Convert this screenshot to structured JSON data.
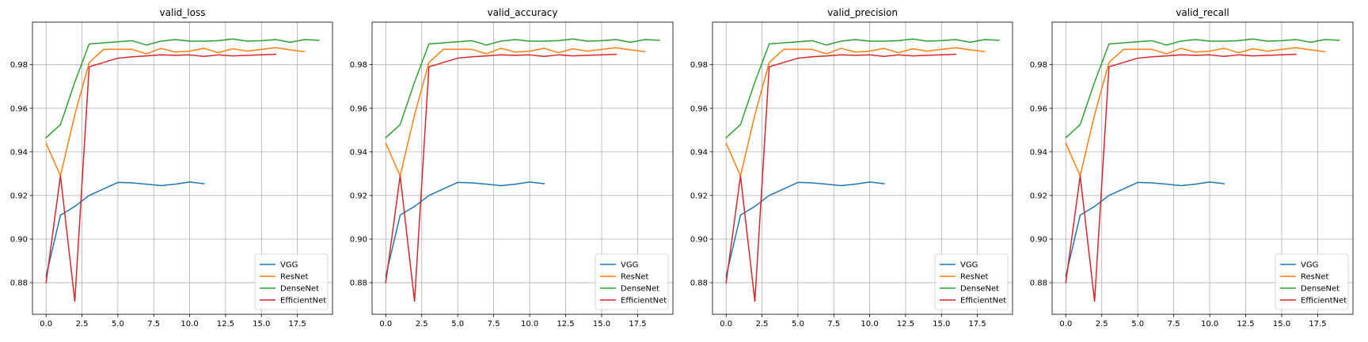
{
  "figure": {
    "background": "#ffffff",
    "grid_color": "#b0b0b0",
    "axis_color": "#000000"
  },
  "chart_data": [
    {
      "type": "line",
      "title": "valid_loss",
      "xlabel": "",
      "ylabel": "",
      "xlim": [
        -0.95,
        19.95
      ],
      "ylim": [
        0.8655,
        0.9995
      ],
      "xticks": [
        0.0,
        2.5,
        5.0,
        7.5,
        10.0,
        12.5,
        15.0,
        17.5
      ],
      "xtick_labels": [
        "0.0",
        "2.5",
        "5.0",
        "7.5",
        "10.0",
        "12.5",
        "15.0",
        "17.5"
      ],
      "yticks": [
        0.88,
        0.9,
        0.92,
        0.94,
        0.96,
        0.98
      ],
      "ytick_labels": [
        "0.88",
        "0.90",
        "0.92",
        "0.94",
        "0.96",
        "0.98"
      ],
      "grid": true,
      "legend_position": "lower-right",
      "series": [
        {
          "name": "VGG",
          "color": "#1f77b4",
          "x": [
            0,
            1,
            2,
            3,
            4,
            5,
            6,
            7,
            8,
            9,
            10,
            11
          ],
          "y": [
            0.883,
            0.911,
            0.915,
            0.92,
            0.923,
            0.926,
            0.9258,
            0.9252,
            0.9245,
            0.9252,
            0.9262,
            0.9254
          ]
        },
        {
          "name": "ResNet",
          "color": "#ff7f0e",
          "x": [
            0,
            1,
            2,
            3,
            4,
            5,
            6,
            7,
            8,
            9,
            10,
            11,
            12,
            13,
            14,
            15,
            16,
            17,
            18
          ],
          "y": [
            0.944,
            0.929,
            0.957,
            0.981,
            0.987,
            0.987,
            0.987,
            0.985,
            0.9875,
            0.9858,
            0.9862,
            0.9875,
            0.9855,
            0.9873,
            0.9862,
            0.987,
            0.9878,
            0.9868,
            0.986
          ]
        },
        {
          "name": "DenseNet",
          "color": "#2ca02c",
          "x": [
            0,
            1,
            2,
            3,
            4,
            5,
            6,
            7,
            8,
            9,
            10,
            11,
            12,
            13,
            14,
            15,
            16,
            17,
            18,
            19
          ],
          "y": [
            0.9465,
            0.9525,
            0.972,
            0.9895,
            0.99,
            0.9905,
            0.991,
            0.989,
            0.9908,
            0.9915,
            0.9908,
            0.9908,
            0.991,
            0.9918,
            0.9908,
            0.991,
            0.9915,
            0.9903,
            0.9915,
            0.9912
          ]
        },
        {
          "name": "EfficientNet",
          "color": "#d62728",
          "x": [
            0,
            1,
            2,
            3,
            4,
            5,
            6,
            7,
            8,
            9,
            10,
            11,
            12,
            13,
            14,
            15,
            16
          ],
          "y": [
            0.88,
            0.929,
            0.8715,
            0.979,
            0.981,
            0.983,
            0.9836,
            0.984,
            0.9845,
            0.9843,
            0.9845,
            0.9838,
            0.9845,
            0.984,
            0.9843,
            0.9845,
            0.9848
          ]
        }
      ]
    },
    {
      "type": "line",
      "title": "valid_accuracy",
      "xlabel": "",
      "ylabel": "",
      "xlim": [
        -0.95,
        19.95
      ],
      "ylim": [
        0.8655,
        0.9995
      ],
      "xticks": [
        0.0,
        2.5,
        5.0,
        7.5,
        10.0,
        12.5,
        15.0,
        17.5
      ],
      "xtick_labels": [
        "0.0",
        "2.5",
        "5.0",
        "7.5",
        "10.0",
        "12.5",
        "15.0",
        "17.5"
      ],
      "yticks": [
        0.88,
        0.9,
        0.92,
        0.94,
        0.96,
        0.98
      ],
      "ytick_labels": [
        "0.88",
        "0.90",
        "0.92",
        "0.94",
        "0.96",
        "0.98"
      ],
      "grid": true,
      "legend_position": "lower-right",
      "series": [
        {
          "name": "VGG",
          "color": "#1f77b4",
          "x": [
            0,
            1,
            2,
            3,
            4,
            5,
            6,
            7,
            8,
            9,
            10,
            11
          ],
          "y": [
            0.883,
            0.911,
            0.915,
            0.92,
            0.923,
            0.926,
            0.9258,
            0.9252,
            0.9245,
            0.9252,
            0.9262,
            0.9254
          ]
        },
        {
          "name": "ResNet",
          "color": "#ff7f0e",
          "x": [
            0,
            1,
            2,
            3,
            4,
            5,
            6,
            7,
            8,
            9,
            10,
            11,
            12,
            13,
            14,
            15,
            16,
            17,
            18
          ],
          "y": [
            0.944,
            0.929,
            0.957,
            0.981,
            0.987,
            0.987,
            0.987,
            0.985,
            0.9875,
            0.9858,
            0.9862,
            0.9875,
            0.9855,
            0.9873,
            0.9862,
            0.987,
            0.9878,
            0.9868,
            0.986
          ]
        },
        {
          "name": "DenseNet",
          "color": "#2ca02c",
          "x": [
            0,
            1,
            2,
            3,
            4,
            5,
            6,
            7,
            8,
            9,
            10,
            11,
            12,
            13,
            14,
            15,
            16,
            17,
            18,
            19
          ],
          "y": [
            0.9465,
            0.9525,
            0.972,
            0.9895,
            0.99,
            0.9905,
            0.991,
            0.989,
            0.9908,
            0.9915,
            0.9908,
            0.9908,
            0.991,
            0.9918,
            0.9908,
            0.991,
            0.9915,
            0.9903,
            0.9915,
            0.9912
          ]
        },
        {
          "name": "EfficientNet",
          "color": "#d62728",
          "x": [
            0,
            1,
            2,
            3,
            4,
            5,
            6,
            7,
            8,
            9,
            10,
            11,
            12,
            13,
            14,
            15,
            16
          ],
          "y": [
            0.88,
            0.929,
            0.8715,
            0.979,
            0.981,
            0.983,
            0.9836,
            0.984,
            0.9845,
            0.9843,
            0.9845,
            0.9838,
            0.9845,
            0.984,
            0.9843,
            0.9845,
            0.9848
          ]
        }
      ]
    },
    {
      "type": "line",
      "title": "valid_precision",
      "xlabel": "",
      "ylabel": "",
      "xlim": [
        -0.95,
        19.95
      ],
      "ylim": [
        0.8655,
        0.9995
      ],
      "xticks": [
        0.0,
        2.5,
        5.0,
        7.5,
        10.0,
        12.5,
        15.0,
        17.5
      ],
      "xtick_labels": [
        "0.0",
        "2.5",
        "5.0",
        "7.5",
        "10.0",
        "12.5",
        "15.0",
        "17.5"
      ],
      "yticks": [
        0.88,
        0.9,
        0.92,
        0.94,
        0.96,
        0.98
      ],
      "ytick_labels": [
        "0.88",
        "0.90",
        "0.92",
        "0.94",
        "0.96",
        "0.98"
      ],
      "grid": true,
      "legend_position": "lower-right",
      "series": [
        {
          "name": "VGG",
          "color": "#1f77b4",
          "x": [
            0,
            1,
            2,
            3,
            4,
            5,
            6,
            7,
            8,
            9,
            10,
            11
          ],
          "y": [
            0.883,
            0.911,
            0.915,
            0.92,
            0.923,
            0.926,
            0.9258,
            0.9252,
            0.9245,
            0.9252,
            0.9262,
            0.9254
          ]
        },
        {
          "name": "ResNet",
          "color": "#ff7f0e",
          "x": [
            0,
            1,
            2,
            3,
            4,
            5,
            6,
            7,
            8,
            9,
            10,
            11,
            12,
            13,
            14,
            15,
            16,
            17,
            18
          ],
          "y": [
            0.944,
            0.929,
            0.957,
            0.981,
            0.987,
            0.987,
            0.987,
            0.985,
            0.9875,
            0.9858,
            0.9862,
            0.9875,
            0.9855,
            0.9873,
            0.9862,
            0.987,
            0.9878,
            0.9868,
            0.986
          ]
        },
        {
          "name": "DenseNet",
          "color": "#2ca02c",
          "x": [
            0,
            1,
            2,
            3,
            4,
            5,
            6,
            7,
            8,
            9,
            10,
            11,
            12,
            13,
            14,
            15,
            16,
            17,
            18,
            19
          ],
          "y": [
            0.9465,
            0.9525,
            0.972,
            0.9895,
            0.99,
            0.9905,
            0.991,
            0.989,
            0.9908,
            0.9915,
            0.9908,
            0.9908,
            0.991,
            0.9918,
            0.9908,
            0.991,
            0.9915,
            0.9903,
            0.9915,
            0.9912
          ]
        },
        {
          "name": "EfficientNet",
          "color": "#d62728",
          "x": [
            0,
            1,
            2,
            3,
            4,
            5,
            6,
            7,
            8,
            9,
            10,
            11,
            12,
            13,
            14,
            15,
            16
          ],
          "y": [
            0.88,
            0.929,
            0.8715,
            0.979,
            0.981,
            0.983,
            0.9836,
            0.984,
            0.9845,
            0.9843,
            0.9845,
            0.9838,
            0.9845,
            0.984,
            0.9843,
            0.9845,
            0.9848
          ]
        }
      ]
    },
    {
      "type": "line",
      "title": "valid_recall",
      "xlabel": "",
      "ylabel": "",
      "xlim": [
        -0.95,
        19.95
      ],
      "ylim": [
        0.8655,
        0.9995
      ],
      "xticks": [
        0.0,
        2.5,
        5.0,
        7.5,
        10.0,
        12.5,
        15.0,
        17.5
      ],
      "xtick_labels": [
        "0.0",
        "2.5",
        "5.0",
        "7.5",
        "10.0",
        "12.5",
        "15.0",
        "17.5"
      ],
      "yticks": [
        0.88,
        0.9,
        0.92,
        0.94,
        0.96,
        0.98
      ],
      "ytick_labels": [
        "0.88",
        "0.90",
        "0.92",
        "0.94",
        "0.96",
        "0.98"
      ],
      "grid": true,
      "legend_position": "lower-right",
      "series": [
        {
          "name": "VGG",
          "color": "#1f77b4",
          "x": [
            0,
            1,
            2,
            3,
            4,
            5,
            6,
            7,
            8,
            9,
            10,
            11
          ],
          "y": [
            0.883,
            0.911,
            0.915,
            0.92,
            0.923,
            0.926,
            0.9258,
            0.9252,
            0.9245,
            0.9252,
            0.9262,
            0.9254
          ]
        },
        {
          "name": "ResNet",
          "color": "#ff7f0e",
          "x": [
            0,
            1,
            2,
            3,
            4,
            5,
            6,
            7,
            8,
            9,
            10,
            11,
            12,
            13,
            14,
            15,
            16,
            17,
            18
          ],
          "y": [
            0.944,
            0.929,
            0.957,
            0.981,
            0.987,
            0.987,
            0.987,
            0.985,
            0.9875,
            0.9858,
            0.9862,
            0.9875,
            0.9855,
            0.9873,
            0.9862,
            0.987,
            0.9878,
            0.9868,
            0.986
          ]
        },
        {
          "name": "DenseNet",
          "color": "#2ca02c",
          "x": [
            0,
            1,
            2,
            3,
            4,
            5,
            6,
            7,
            8,
            9,
            10,
            11,
            12,
            13,
            14,
            15,
            16,
            17,
            18,
            19
          ],
          "y": [
            0.9465,
            0.9525,
            0.972,
            0.9895,
            0.99,
            0.9905,
            0.991,
            0.989,
            0.9908,
            0.9915,
            0.9908,
            0.9908,
            0.991,
            0.9918,
            0.9908,
            0.991,
            0.9915,
            0.9903,
            0.9915,
            0.9912
          ]
        },
        {
          "name": "EfficientNet",
          "color": "#d62728",
          "x": [
            0,
            1,
            2,
            3,
            4,
            5,
            6,
            7,
            8,
            9,
            10,
            11,
            12,
            13,
            14,
            15,
            16
          ],
          "y": [
            0.88,
            0.929,
            0.8715,
            0.979,
            0.981,
            0.983,
            0.9836,
            0.984,
            0.9845,
            0.9843,
            0.9845,
            0.9838,
            0.9845,
            0.984,
            0.9843,
            0.9845,
            0.9848
          ]
        }
      ]
    }
  ]
}
